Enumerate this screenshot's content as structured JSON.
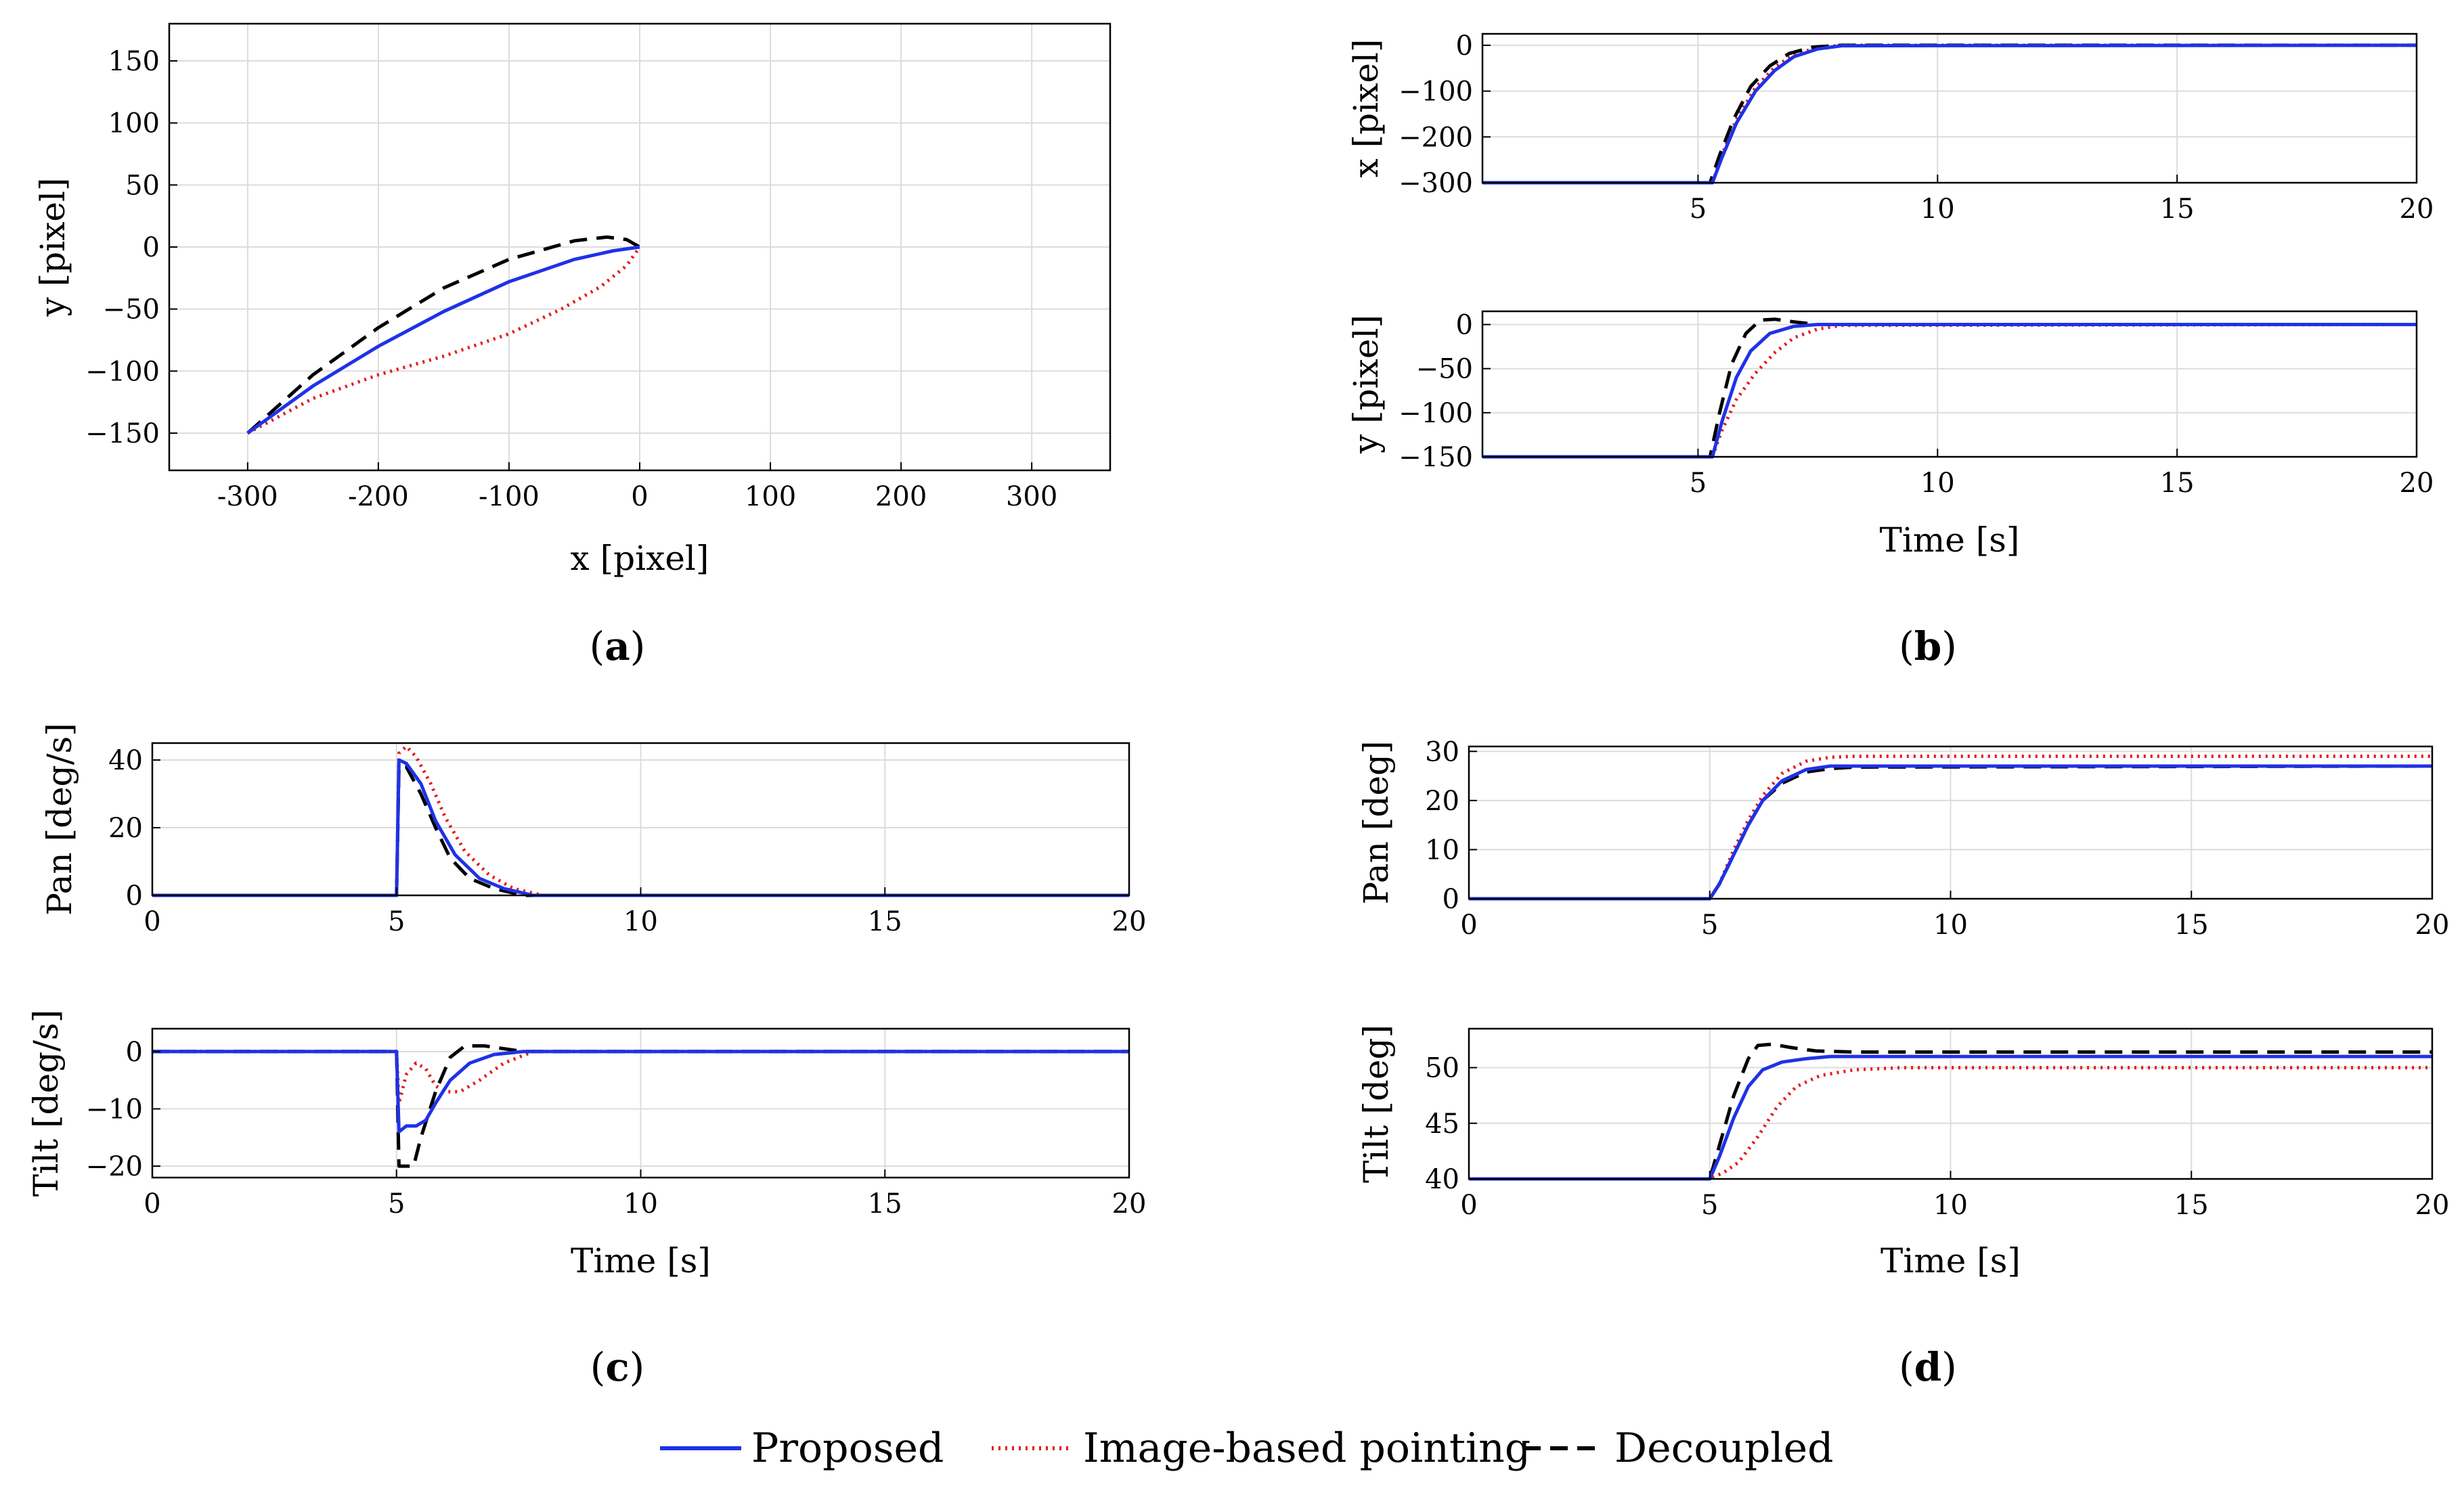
{
  "figure": {
    "panel_labels": [
      {
        "id": "a",
        "text": "(a)"
      },
      {
        "id": "b",
        "text": "(b)"
      },
      {
        "id": "c",
        "text": "(c)"
      },
      {
        "id": "d",
        "text": "(d)"
      }
    ]
  },
  "legend": {
    "entries": [
      {
        "name": "Proposed",
        "color": "#1f32e6",
        "style": "solid"
      },
      {
        "name": "Image-based pointing",
        "color": "#e41a1c",
        "style": "dotted"
      },
      {
        "name": "Decoupled",
        "color": "#000000",
        "style": "dashed"
      }
    ]
  },
  "chart_data": [
    {
      "id": "a",
      "type": "line",
      "title": "",
      "xlabel": "x [pixel]",
      "ylabel": "y [pixel]",
      "xlim": [
        -360,
        360
      ],
      "ylim": [
        -180,
        180
      ],
      "xticks": [
        -300,
        -200,
        -100,
        0,
        100,
        200,
        300
      ],
      "yticks": [
        -150,
        -100,
        -50,
        0,
        50,
        100,
        150
      ],
      "xtick_labels": [
        "-300",
        "-200",
        "-100",
        "0",
        "100",
        "200",
        "300"
      ],
      "ytick_labels": [
        "−150",
        "−100",
        "−50",
        "0",
        "50",
        "100",
        "150"
      ],
      "grid": true,
      "series": [
        {
          "name": "Proposed",
          "x": [
            -300,
            -250,
            -200,
            -150,
            -100,
            -50,
            -20,
            0
          ],
          "y": [
            -150,
            -112,
            -80,
            -52,
            -28,
            -10,
            -3,
            0
          ]
        },
        {
          "name": "Image-based pointing",
          "x": [
            -300,
            -250,
            -200,
            -150,
            -100,
            -60,
            -30,
            -10,
            0
          ],
          "y": [
            -150,
            -122,
            -103,
            -88,
            -70,
            -50,
            -32,
            -15,
            0
          ]
        },
        {
          "name": "Decoupled",
          "x": [
            -300,
            -250,
            -200,
            -150,
            -100,
            -50,
            -25,
            -10,
            0
          ],
          "y": [
            -150,
            -103,
            -65,
            -33,
            -10,
            5,
            8,
            6,
            0
          ]
        }
      ]
    },
    {
      "id": "b1",
      "type": "line",
      "xlabel": "",
      "ylabel": "x [pixel]",
      "xlim": [
        0.5,
        20
      ],
      "ylim": [
        -300,
        25
      ],
      "xticks": [
        5,
        10,
        15,
        20
      ],
      "yticks": [
        -300,
        -200,
        -100,
        0
      ],
      "xtick_labels": [
        "5",
        "10",
        "15",
        "20"
      ],
      "ytick_labels": [
        "−300",
        "−200",
        "−100",
        "0"
      ],
      "grid": true,
      "series": [
        {
          "name": "Proposed",
          "x": [
            0.5,
            5.3,
            5.5,
            5.8,
            6.2,
            6.6,
            7.0,
            7.5,
            8.0,
            20
          ],
          "y": [
            -300,
            -300,
            -245,
            -170,
            -100,
            -55,
            -25,
            -8,
            -1,
            0
          ]
        },
        {
          "name": "Image-based pointing",
          "x": [
            0.5,
            5.3,
            5.5,
            5.8,
            6.2,
            6.6,
            7.0,
            7.5,
            8.0,
            20
          ],
          "y": [
            -300,
            -300,
            -240,
            -162,
            -92,
            -48,
            -20,
            -5,
            0,
            0
          ]
        },
        {
          "name": "Decoupled",
          "x": [
            0.5,
            5.25,
            5.45,
            5.75,
            6.1,
            6.5,
            6.9,
            7.4,
            8.0,
            20
          ],
          "y": [
            -300,
            -300,
            -240,
            -160,
            -90,
            -45,
            -18,
            -4,
            0,
            0
          ]
        }
      ]
    },
    {
      "id": "b2",
      "type": "line",
      "xlabel": "Time [s]",
      "ylabel": "y [pixel]",
      "xlim": [
        0.5,
        20
      ],
      "ylim": [
        -150,
        15
      ],
      "xticks": [
        5,
        10,
        15,
        20
      ],
      "yticks": [
        -150,
        -100,
        -50,
        0
      ],
      "xtick_labels": [
        "5",
        "10",
        "15",
        "20"
      ],
      "ytick_labels": [
        "−150",
        "−100",
        "−50",
        "0"
      ],
      "grid": true,
      "series": [
        {
          "name": "Proposed",
          "x": [
            0.5,
            5.3,
            5.5,
            5.8,
            6.1,
            6.5,
            7.0,
            7.5,
            20
          ],
          "y": [
            -150,
            -150,
            -110,
            -60,
            -30,
            -10,
            -2,
            0,
            0
          ]
        },
        {
          "name": "Image-based pointing",
          "x": [
            0.5,
            5.3,
            5.5,
            5.8,
            6.2,
            6.6,
            7.0,
            7.5,
            8.0,
            20
          ],
          "y": [
            -150,
            -150,
            -120,
            -85,
            -55,
            -32,
            -15,
            -5,
            -1,
            0
          ]
        },
        {
          "name": "Decoupled",
          "x": [
            0.5,
            5.25,
            5.45,
            5.7,
            6.0,
            6.3,
            6.6,
            7.0,
            7.5,
            20
          ],
          "y": [
            -150,
            -150,
            -100,
            -45,
            -10,
            5,
            6,
            3,
            0,
            0
          ]
        }
      ]
    },
    {
      "id": "c1",
      "type": "line",
      "xlabel": "",
      "ylabel": "Pan [deg/s]",
      "xlim": [
        0,
        20
      ],
      "ylim": [
        0,
        45
      ],
      "xticks": [
        0,
        5,
        10,
        15,
        20
      ],
      "yticks": [
        0,
        20,
        40
      ],
      "xtick_labels": [
        "0",
        "5",
        "10",
        "15",
        "20"
      ],
      "ytick_labels": [
        "0",
        "20",
        "40"
      ],
      "grid": true,
      "series": [
        {
          "name": "Proposed",
          "x": [
            0,
            5.0,
            5.05,
            5.2,
            5.5,
            5.8,
            6.2,
            6.7,
            7.2,
            7.8,
            20
          ],
          "y": [
            0,
            0,
            40,
            39,
            33,
            22,
            12,
            5,
            2,
            0,
            0
          ]
        },
        {
          "name": "Image-based pointing",
          "x": [
            0,
            5.0,
            5.05,
            5.2,
            5.4,
            5.7,
            6.0,
            6.4,
            6.9,
            7.4,
            8.0,
            20
          ],
          "y": [
            0,
            0,
            42,
            44,
            41,
            33,
            23,
            13,
            6,
            2,
            0,
            0
          ]
        },
        {
          "name": "Decoupled",
          "x": [
            0,
            5.0,
            5.05,
            5.2,
            5.5,
            5.8,
            6.1,
            6.5,
            7.0,
            7.6,
            20
          ],
          "y": [
            0,
            0,
            38,
            38,
            30,
            20,
            11,
            5,
            2,
            0,
            0
          ]
        }
      ]
    },
    {
      "id": "c2",
      "type": "line",
      "xlabel": "Time [s]",
      "ylabel": "Tilt [deg/s]",
      "xlim": [
        0,
        20
      ],
      "ylim": [
        -22,
        4
      ],
      "xticks": [
        0,
        5,
        10,
        15,
        20
      ],
      "yticks": [
        -20,
        -10,
        0
      ],
      "xtick_labels": [
        "0",
        "5",
        "10",
        "15",
        "20"
      ],
      "ytick_labels": [
        "−20",
        "−10",
        "0"
      ],
      "grid": true,
      "series": [
        {
          "name": "Proposed",
          "x": [
            0,
            5.0,
            5.05,
            5.2,
            5.4,
            5.6,
            5.8,
            6.1,
            6.5,
            7.0,
            7.6,
            20
          ],
          "y": [
            0,
            0,
            -14,
            -13,
            -13,
            -12,
            -9,
            -5,
            -2,
            -0.5,
            0,
            0
          ]
        },
        {
          "name": "Image-based pointing",
          "x": [
            0,
            5.0,
            5.05,
            5.2,
            5.4,
            5.6,
            5.8,
            6.0,
            6.3,
            6.7,
            7.2,
            7.8,
            20
          ],
          "y": [
            0,
            0,
            -9,
            -4,
            -2,
            -3,
            -6,
            -7,
            -7,
            -5,
            -2,
            0,
            0
          ]
        },
        {
          "name": "Decoupled",
          "x": [
            0,
            5.0,
            5.05,
            5.2,
            5.35,
            5.5,
            5.8,
            6.1,
            6.4,
            6.8,
            7.2,
            7.6,
            20
          ],
          "y": [
            0,
            0,
            -20,
            -20,
            -20,
            -15,
            -7,
            -1,
            1,
            1,
            0.5,
            0,
            0
          ]
        }
      ]
    },
    {
      "id": "d1",
      "type": "line",
      "xlabel": "",
      "ylabel": "Pan [deg]",
      "xlim": [
        0,
        20
      ],
      "ylim": [
        0,
        31
      ],
      "xticks": [
        0,
        5,
        10,
        15,
        20
      ],
      "yticks": [
        0,
        10,
        20,
        30
      ],
      "xtick_labels": [
        "0",
        "5",
        "10",
        "15",
        "20"
      ],
      "ytick_labels": [
        "0",
        "10",
        "20",
        "30"
      ],
      "grid": true,
      "series": [
        {
          "name": "Proposed",
          "x": [
            0,
            5.0,
            5.2,
            5.5,
            5.8,
            6.1,
            6.5,
            7.0,
            7.5,
            8.0,
            20
          ],
          "y": [
            0,
            0,
            3,
            9,
            15,
            20,
            24,
            26.3,
            27,
            27,
            27
          ]
        },
        {
          "name": "Image-based pointing",
          "x": [
            0,
            5.0,
            5.2,
            5.5,
            5.8,
            6.1,
            6.5,
            7.0,
            7.5,
            8.0,
            20
          ],
          "y": [
            0,
            0,
            3,
            10,
            16,
            21,
            25.5,
            28,
            28.8,
            29,
            29
          ]
        },
        {
          "name": "Decoupled",
          "x": [
            0,
            5.0,
            5.2,
            5.5,
            5.8,
            6.1,
            6.5,
            7.0,
            7.5,
            8.0,
            20
          ],
          "y": [
            0,
            0,
            3,
            9,
            15,
            20,
            23.5,
            25.8,
            26.5,
            26.8,
            27
          ]
        }
      ]
    },
    {
      "id": "d2",
      "type": "line",
      "xlabel": "Time [s]",
      "ylabel": "Tilt [deg]",
      "xlim": [
        0,
        20
      ],
      "ylim": [
        40,
        53.5
      ],
      "xticks": [
        0,
        5,
        10,
        15,
        20
      ],
      "yticks": [
        40,
        45,
        50
      ],
      "xtick_labels": [
        "0",
        "5",
        "10",
        "15",
        "20"
      ],
      "ytick_labels": [
        "40",
        "45",
        "50"
      ],
      "grid": true,
      "series": [
        {
          "name": "Proposed",
          "x": [
            0,
            5.0,
            5.2,
            5.5,
            5.8,
            6.1,
            6.5,
            7.0,
            7.5,
            20
          ],
          "y": [
            40,
            40,
            42,
            45.5,
            48.3,
            49.8,
            50.5,
            50.8,
            51,
            51
          ]
        },
        {
          "name": "Image-based pointing",
          "x": [
            0,
            5.0,
            5.3,
            5.6,
            6.0,
            6.4,
            6.8,
            7.3,
            8.0,
            9.0,
            20
          ],
          "y": [
            40,
            40,
            40.6,
            41.5,
            43.8,
            46.5,
            48.3,
            49.3,
            49.8,
            50,
            50
          ]
        },
        {
          "name": "Decoupled",
          "x": [
            0,
            5.0,
            5.2,
            5.5,
            5.8,
            6.0,
            6.3,
            6.7,
            7.2,
            8.0,
            9.0,
            20
          ],
          "y": [
            40,
            40,
            43,
            47.5,
            50.8,
            52,
            52.1,
            51.8,
            51.5,
            51.4,
            51.4,
            51.4
          ]
        }
      ]
    }
  ]
}
